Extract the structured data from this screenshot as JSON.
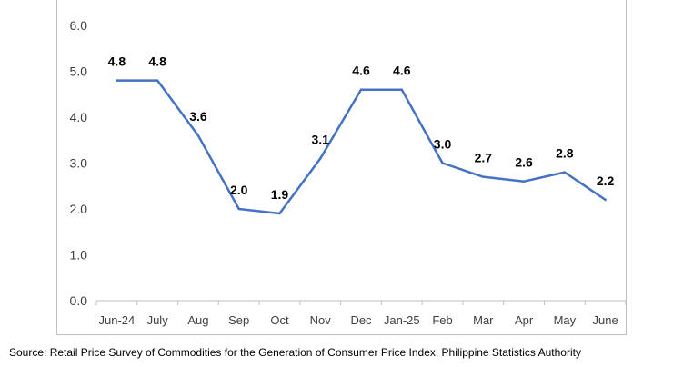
{
  "chart_data": {
    "type": "line",
    "title": "",
    "xlabel": "",
    "ylabel": "",
    "categories": [
      "Jun-24",
      "July",
      "Aug",
      "Sep",
      "Oct",
      "Nov",
      "Dec",
      "Jan-25",
      "Feb",
      "Mar",
      "Apr",
      "May",
      "June"
    ],
    "series": [
      {
        "values": [
          4.8,
          4.8,
          3.6,
          2.0,
          1.9,
          3.1,
          4.6,
          4.6,
          3.0,
          2.7,
          2.6,
          2.8,
          2.2
        ],
        "labels": [
          "4.8",
          "4.8",
          "3.6",
          "2.0",
          "1.9",
          "3.1",
          "4.6",
          "4.6",
          "3.0",
          "2.7",
          "2.6",
          "2.8",
          "2.2"
        ]
      }
    ],
    "yticks": [
      "0.0",
      "1.0",
      "2.0",
      "3.0",
      "4.0",
      "5.0",
      "6.0"
    ],
    "ylim": [
      0,
      6
    ],
    "grid": false,
    "line_color": "#4472C4"
  },
  "footer": {
    "source": "Source: Retail Price Survey of Commodities for the Generation of Consumer Price Index, Philippine Statistics Authority"
  }
}
